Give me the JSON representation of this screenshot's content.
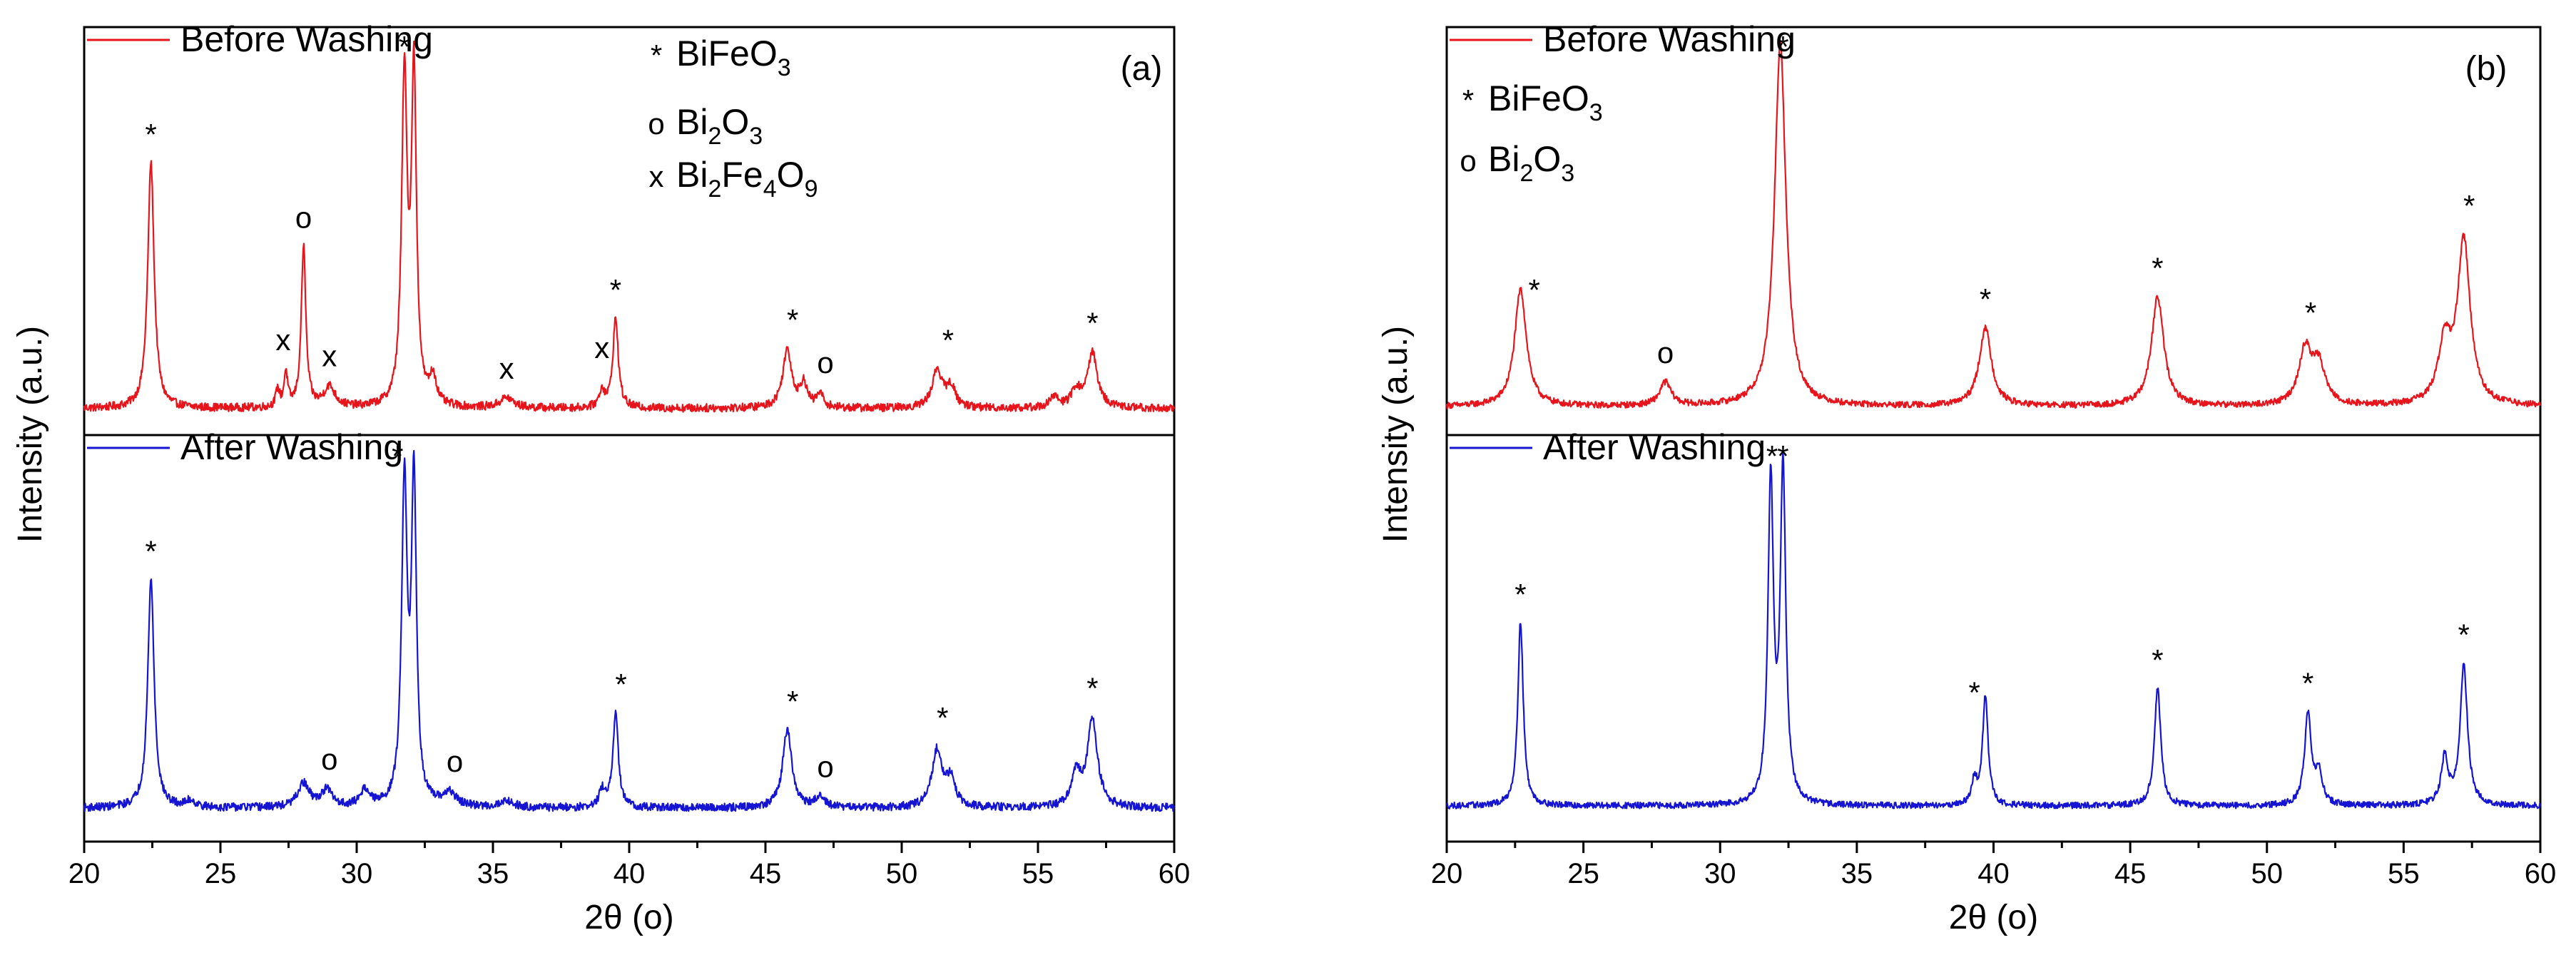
{
  "chart_data": [
    {
      "type": "line",
      "panel_label": "(a)",
      "xlabel": "2θ (o)",
      "ylabel": "Intensity (a.u.)",
      "xlim": [
        20,
        60
      ],
      "xticks": [
        20,
        25,
        30,
        35,
        40,
        45,
        50,
        55,
        60
      ],
      "legend": [
        {
          "marker": "*",
          "phase": "BiFeO3",
          "parts": [
            {
              "t": "BiFe"
            },
            {
              "t": "O"
            },
            {
              "t": "3",
              "sub": true
            }
          ]
        },
        {
          "marker": "o",
          "phase": "Bi2O3",
          "parts": [
            {
              "t": "Bi"
            },
            {
              "t": "2",
              "sub": true
            },
            {
              "t": "O"
            },
            {
              "t": "3",
              "sub": true
            }
          ]
        },
        {
          "marker": "x",
          "phase": "Bi2Fe4O9",
          "parts": [
            {
              "t": "Bi"
            },
            {
              "t": "2",
              "sub": true
            },
            {
              "t": "Fe"
            },
            {
              "t": "4",
              "sub": true
            },
            {
              "t": "O"
            },
            {
              "t": "9",
              "sub": true
            }
          ]
        }
      ],
      "series": [
        {
          "name": "Before Washing",
          "color": "#e8141c",
          "baseline": 0.04,
          "noise": 0.012,
          "peaks": [
            [
              22.45,
              0.72,
              0.14
            ],
            [
              27.1,
              0.05,
              0.08
            ],
            [
              27.4,
              0.1,
              0.08
            ],
            [
              28.05,
              0.47,
              0.1
            ],
            [
              29.0,
              0.06,
              0.25
            ],
            [
              31.75,
              0.95,
              0.12
            ],
            [
              32.1,
              0.96,
              0.11
            ],
            [
              32.8,
              0.08,
              0.15
            ],
            [
              35.5,
              0.03,
              0.3
            ],
            [
              39.0,
              0.05,
              0.12
            ],
            [
              39.5,
              0.26,
              0.12
            ],
            [
              45.8,
              0.17,
              0.2
            ],
            [
              46.4,
              0.07,
              0.15
            ],
            [
              47.0,
              0.04,
              0.15
            ],
            [
              51.3,
              0.11,
              0.22
            ],
            [
              51.8,
              0.06,
              0.2
            ],
            [
              55.6,
              0.03,
              0.2
            ],
            [
              56.4,
              0.05,
              0.2
            ],
            [
              57.0,
              0.16,
              0.22
            ]
          ],
          "markers": [
            {
              "symbol": "*",
              "x": 22.45
            },
            {
              "symbol": "x",
              "x": 27.3
            },
            {
              "symbol": "o",
              "x": 28.05
            },
            {
              "symbol": "x",
              "x": 29.0
            },
            {
              "symbol": "*",
              "x": 31.75
            },
            {
              "symbol": "x",
              "x": 35.5
            },
            {
              "symbol": "x",
              "x": 39.0
            },
            {
              "symbol": "*",
              "x": 39.5
            },
            {
              "symbol": "*",
              "x": 46.0
            },
            {
              "symbol": "o",
              "x": 47.2
            },
            {
              "symbol": "*",
              "x": 51.7
            },
            {
              "symbol": "*",
              "x": 57.0
            }
          ]
        },
        {
          "name": "After Washing",
          "color": "#1414d2",
          "baseline": 0.04,
          "noise": 0.012,
          "peaks": [
            [
              22.45,
              0.68,
              0.14
            ],
            [
              23.9,
              0.02,
              0.2
            ],
            [
              28.05,
              0.07,
              0.25
            ],
            [
              28.9,
              0.05,
              0.25
            ],
            [
              30.3,
              0.05,
              0.2
            ],
            [
              31.75,
              0.95,
              0.12
            ],
            [
              32.1,
              0.96,
              0.11
            ],
            [
              33.4,
              0.04,
              0.3
            ],
            [
              35.5,
              0.02,
              0.3
            ],
            [
              39.0,
              0.05,
              0.12
            ],
            [
              39.5,
              0.28,
              0.12
            ],
            [
              45.8,
              0.23,
              0.2
            ],
            [
              47.0,
              0.03,
              0.2
            ],
            [
              51.3,
              0.17,
              0.22
            ],
            [
              51.8,
              0.08,
              0.2
            ],
            [
              56.4,
              0.1,
              0.2
            ],
            [
              57.0,
              0.26,
              0.22
            ]
          ],
          "markers": [
            {
              "symbol": "*",
              "x": 22.45
            },
            {
              "symbol": "o",
              "x": 29.0
            },
            {
              "symbol": "*",
              "x": 31.5
            },
            {
              "symbol": "o",
              "x": 33.6
            },
            {
              "symbol": "*",
              "x": 39.7
            },
            {
              "symbol": "*",
              "x": 46.0
            },
            {
              "symbol": "o",
              "x": 47.2
            },
            {
              "symbol": "*",
              "x": 51.5
            },
            {
              "symbol": "*",
              "x": 57.0
            }
          ]
        }
      ]
    },
    {
      "type": "line",
      "panel_label": "(b)",
      "xlabel": "2θ (o)",
      "ylabel": "Intensity (a.u.)",
      "xlim": [
        20,
        60
      ],
      "xticks": [
        20,
        25,
        30,
        35,
        40,
        45,
        50,
        55,
        60
      ],
      "legend": [
        {
          "marker": "*",
          "phase": "BiFeO3",
          "parts": [
            {
              "t": "BiFe"
            },
            {
              "t": "O"
            },
            {
              "t": "3",
              "sub": true
            }
          ]
        },
        {
          "marker": "o",
          "phase": "Bi2O3",
          "parts": [
            {
              "t": "Bi"
            },
            {
              "t": "2",
              "sub": true
            },
            {
              "t": "O"
            },
            {
              "t": "3",
              "sub": true
            }
          ]
        }
      ],
      "series": [
        {
          "name": "Before Washing",
          "color": "#e8141c",
          "baseline": 0.04,
          "noise": 0.008,
          "peaks": [
            [
              22.7,
              0.3,
              0.26
            ],
            [
              28.0,
              0.06,
              0.25
            ],
            [
              32.2,
              0.93,
              0.25
            ],
            [
              39.7,
              0.2,
              0.27
            ],
            [
              46.0,
              0.28,
              0.27
            ],
            [
              51.4,
              0.14,
              0.28
            ],
            [
              51.9,
              0.1,
              0.28
            ],
            [
              56.5,
              0.15,
              0.28
            ],
            [
              57.2,
              0.42,
              0.28
            ]
          ],
          "markers": [
            {
              "symbol": "*",
              "x": 23.2
            },
            {
              "symbol": "o",
              "x": 28.0
            },
            {
              "symbol": "*",
              "x": 32.3
            },
            {
              "symbol": "*",
              "x": 39.7
            },
            {
              "symbol": "*",
              "x": 46.0
            },
            {
              "symbol": "*",
              "x": 51.6
            },
            {
              "symbol": "*",
              "x": 57.4
            }
          ]
        },
        {
          "name": "After Washing",
          "color": "#1414d2",
          "baseline": 0.04,
          "noise": 0.008,
          "peaks": [
            [
              22.7,
              0.47,
              0.12
            ],
            [
              31.85,
              0.82,
              0.12
            ],
            [
              32.3,
              0.85,
              0.12
            ],
            [
              39.3,
              0.06,
              0.12
            ],
            [
              39.7,
              0.28,
              0.12
            ],
            [
              46.0,
              0.3,
              0.14
            ],
            [
              51.5,
              0.23,
              0.15
            ],
            [
              51.9,
              0.08,
              0.15
            ],
            [
              56.5,
              0.12,
              0.15
            ],
            [
              57.2,
              0.36,
              0.16
            ]
          ],
          "markers": [
            {
              "symbol": "*",
              "x": 22.7
            },
            {
              "symbol": "*",
              "x": 31.9
            },
            {
              "symbol": "*",
              "x": 32.3
            },
            {
              "symbol": "*",
              "x": 39.3
            },
            {
              "symbol": "*",
              "x": 46.0
            },
            {
              "symbol": "*",
              "x": 51.5
            },
            {
              "symbol": "*",
              "x": 57.2
            }
          ]
        }
      ]
    }
  ]
}
